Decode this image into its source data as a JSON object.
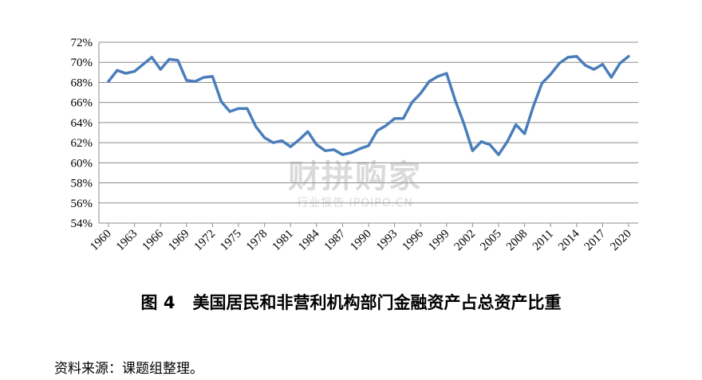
{
  "chart_data": {
    "type": "line",
    "title": "",
    "xlabel": "",
    "ylabel": "",
    "ylim": [
      54,
      72
    ],
    "xlim": [
      1960,
      2020
    ],
    "y_ticks": [
      "54%",
      "56%",
      "58%",
      "60%",
      "62%",
      "64%",
      "66%",
      "68%",
      "70%",
      "72%"
    ],
    "x_ticks": [
      "1960",
      "1963",
      "1966",
      "1969",
      "1972",
      "1975",
      "1978",
      "1981",
      "1984",
      "1987",
      "1990",
      "1993",
      "1996",
      "1999",
      "2002",
      "2005",
      "2008",
      "2011",
      "2014",
      "2017",
      "2020"
    ],
    "grid": true,
    "legend": "none",
    "series_color": "#4a7ebb",
    "x": [
      1960,
      1961,
      1962,
      1963,
      1964,
      1965,
      1966,
      1967,
      1968,
      1969,
      1970,
      1971,
      1972,
      1973,
      1974,
      1975,
      1976,
      1977,
      1978,
      1979,
      1980,
      1981,
      1982,
      1983,
      1984,
      1985,
      1986,
      1987,
      1988,
      1989,
      1990,
      1991,
      1992,
      1993,
      1994,
      1995,
      1996,
      1997,
      1998,
      1999,
      2000,
      2001,
      2002,
      2003,
      2004,
      2005,
      2006,
      2007,
      2008,
      2009,
      2010,
      2011,
      2012,
      2013,
      2014,
      2015,
      2016,
      2017,
      2018,
      2019,
      2020
    ],
    "series": [
      {
        "values": [
          68.1,
          69.2,
          68.9,
          69.1,
          69.8,
          70.5,
          69.3,
          70.3,
          70.2,
          68.2,
          68.1,
          68.5,
          68.6,
          66.1,
          65.1,
          65.4,
          65.4,
          63.6,
          62.5,
          62.0,
          62.2,
          61.6,
          62.3,
          63.1,
          61.8,
          61.2,
          61.3,
          60.8,
          61.0,
          61.4,
          61.7,
          63.2,
          63.7,
          64.4,
          64.4,
          66.0,
          66.9,
          68.1,
          68.6,
          68.9,
          66.2,
          63.9,
          61.2,
          62.1,
          61.8,
          60.8,
          62.1,
          63.8,
          62.9,
          65.6,
          67.9,
          68.8,
          69.9,
          70.5,
          70.6,
          69.7,
          69.3,
          69.8,
          68.5,
          69.9,
          70.6
        ]
      }
    ]
  },
  "figure": {
    "number": "图 4",
    "caption": "美国居民和非营利机构部门金融资产占总资产比重"
  },
  "source": "资料来源：课题组整理。",
  "watermark": {
    "logo": "财拼购家",
    "sub": "行业报告 IPOIPO.CN"
  }
}
